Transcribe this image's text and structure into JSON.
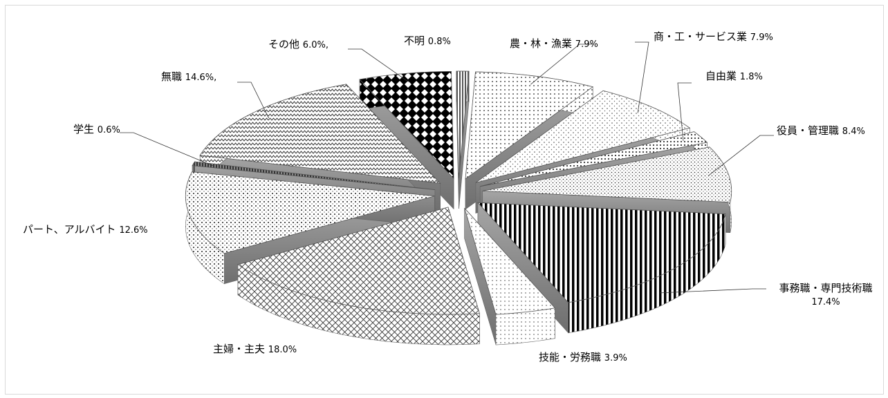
{
  "chart_data": {
    "type": "pie",
    "title": "",
    "style": "3d-exploded-monochrome-patterns",
    "slices": [
      {
        "name": "不明",
        "value": 0.8,
        "label": "不明",
        "pct_text": "0.8%"
      },
      {
        "name": "農・林・漁業",
        "value": 7.9,
        "label": "農・林・漁業",
        "pct_text": "7.9%"
      },
      {
        "name": "商・工・サービス業",
        "value": 7.9,
        "label": "商・工・サービス業",
        "pct_text": "7.9%"
      },
      {
        "name": "自由業",
        "value": 1.8,
        "label": "自由業",
        "pct_text": "1.8%"
      },
      {
        "name": "役員・管理職",
        "value": 8.4,
        "label": "役員・管理職",
        "pct_text": "8.4%"
      },
      {
        "name": "事務職・専門技術職",
        "value": 17.4,
        "label": "事務職・専門技術職",
        "pct_text": "17.4%"
      },
      {
        "name": "技能・労務職",
        "value": 3.9,
        "label": "技能・労務職",
        "pct_text": "3.9%"
      },
      {
        "name": "主婦・主夫",
        "value": 18.0,
        "label": "主婦・主夫",
        "pct_text": "18.0%"
      },
      {
        "name": "パート、アルバイト",
        "value": 12.6,
        "label": "パート、アルバイト",
        "pct_text": "12.6%"
      },
      {
        "name": "学生",
        "value": 0.6,
        "label": "学生",
        "pct_text": "0.6%"
      },
      {
        "name": "無職",
        "value": 14.6,
        "label": "無職",
        "pct_text": "14.6%,"
      },
      {
        "name": "その他",
        "value": 6.0,
        "label": "その他",
        "pct_text": "6.0%,"
      }
    ],
    "legend": "none",
    "colors": {
      "border": "#d9d9d9",
      "side": "#8c8c8c",
      "ink": "#000000"
    }
  }
}
